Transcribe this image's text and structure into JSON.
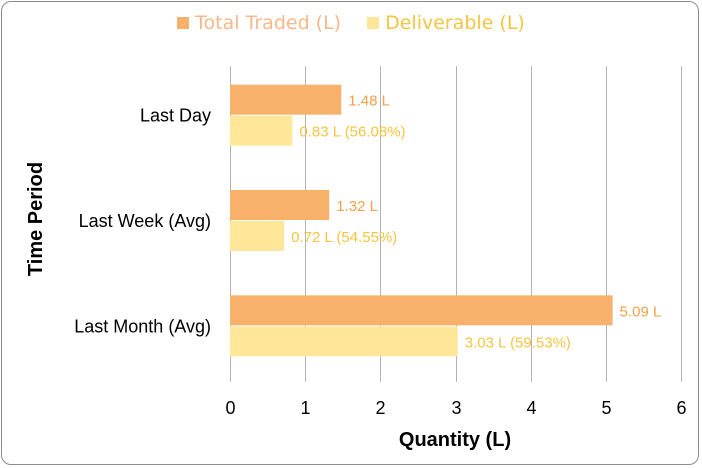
{
  "chart_data": {
    "type": "bar",
    "orientation": "horizontal",
    "title": "",
    "xlabel": "Quantity (L)",
    "ylabel": "Time Period",
    "xlim": [
      0,
      6
    ],
    "xticks": [
      "0",
      "1",
      "2",
      "3",
      "4",
      "5",
      "6"
    ],
    "grid": true,
    "legend_position": "top-center",
    "categories": [
      "Last Day",
      "Last Week (Avg)",
      "Last Month (Avg)"
    ],
    "series": [
      {
        "name": "Total Traded (L)",
        "color": "#F7B16B",
        "label_color": "#F5A14A",
        "legend_text_color": "#F8B88A",
        "values": [
          1.48,
          1.32,
          5.09
        ],
        "labels": [
          "1.48 L",
          "1.32 L",
          "5.09 L"
        ]
      },
      {
        "name": "Deliverable (L)",
        "color": "#FFE699",
        "label_color": "#F5C441",
        "legend_text_color": "#F5C441",
        "values": [
          0.83,
          0.72,
          3.03
        ],
        "labels": [
          "0.83 L (56.08%)",
          "0.72 L (54.55%)",
          "3.03 L (59.53%)"
        ]
      }
    ]
  }
}
